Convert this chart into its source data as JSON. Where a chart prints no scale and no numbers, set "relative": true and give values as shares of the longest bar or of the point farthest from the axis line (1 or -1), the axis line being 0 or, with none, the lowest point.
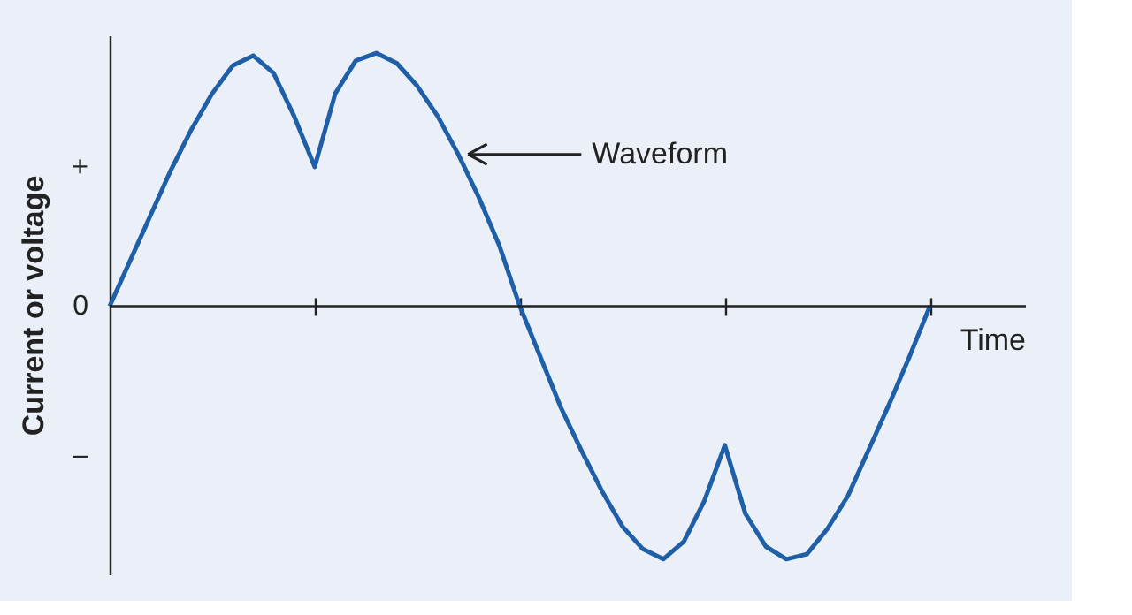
{
  "chart_data": {
    "type": "line",
    "relative": true,
    "xlabel": "Time",
    "ylabel": "Current or voltage",
    "categories": [
      null,
      null,
      null,
      null,
      null,
      null,
      null,
      null,
      null,
      null,
      null,
      null,
      null,
      null,
      null,
      null,
      null,
      null,
      null,
      null,
      null,
      null,
      null,
      null,
      null,
      null,
      null,
      null,
      null,
      null,
      null,
      null,
      null,
      null,
      null,
      null,
      null,
      null,
      null,
      null,
      null
    ],
    "series": [
      {
        "color": "#1f5fa8",
        "values": [
          0,
          0.18,
          0.36,
          0.54,
          0.7,
          0.84,
          0.95,
          0.99,
          0.92,
          0.75,
          0.55,
          0.84,
          0.97,
          1.0,
          0.96,
          0.87,
          0.75,
          0.6,
          0.43,
          0.24,
          0,
          -0.2,
          -0.4,
          -0.57,
          -0.73,
          -0.87,
          -0.96,
          -1.0,
          -0.93,
          -0.77,
          -0.55,
          -0.82,
          -0.95,
          -1.0,
          -0.98,
          -0.88,
          -0.75,
          -0.57,
          -0.39,
          -0.2,
          0
        ]
      }
    ],
    "annotations": [
      "Waveform",
      "+",
      "0",
      "–"
    ],
    "grid": false,
    "marker": "none",
    "line_style": "solid"
  }
}
